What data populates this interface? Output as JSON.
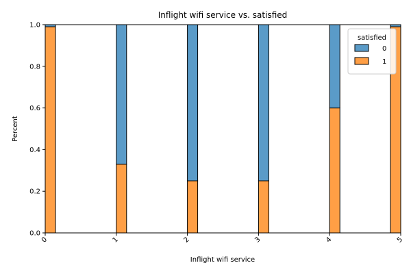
{
  "chart_data": {
    "type": "bar",
    "stacked": true,
    "normalized": true,
    "title": "Inflight wifi service vs. satisfied",
    "xlabel": "Inflight wifi service",
    "ylabel": "Percent",
    "categories": [
      "0",
      "1",
      "2",
      "3",
      "4",
      "5"
    ],
    "x_tick_labels": [
      "0",
      "1",
      "2",
      "3",
      "4",
      "5"
    ],
    "y_ticks": [
      "0.0",
      "0.2",
      "0.4",
      "0.6",
      "0.8",
      "1.0"
    ],
    "ylim": [
      0,
      1
    ],
    "xlim": [
      0,
      5
    ],
    "series": [
      {
        "name": "1",
        "color": "#ff9f45",
        "values": [
          0.99,
          0.33,
          0.25,
          0.25,
          0.6,
          0.99
        ]
      },
      {
        "name": "0",
        "color": "#5a9bc8",
        "values": [
          0.01,
          0.67,
          0.75,
          0.75,
          0.4,
          0.01
        ]
      }
    ],
    "legend": {
      "title": "satisfied",
      "placement": "top-right",
      "entries": [
        {
          "label": "0",
          "color": "#5a9bc8"
        },
        {
          "label": "1",
          "color": "#ff9f45"
        }
      ]
    },
    "grid": false
  }
}
